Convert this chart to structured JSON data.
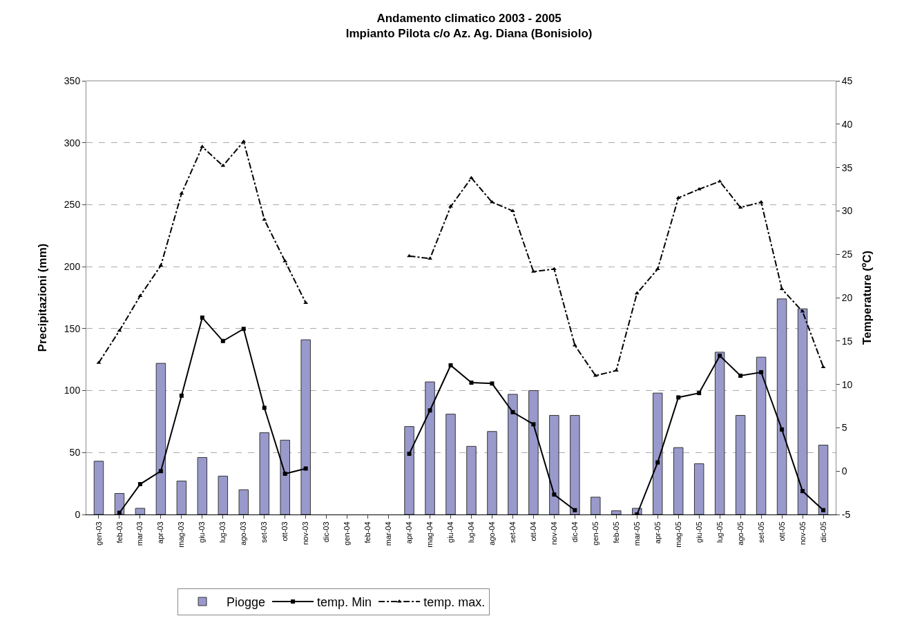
{
  "chart_data": {
    "type": "bar",
    "title": "Andamento climatico 2003 - 2005\nImpianto Pilota c/o Az. Ag. Diana (Bonisiolo)",
    "ylabel": "Precipitazioni (mm)",
    "y2label": "Temperature (ºC)",
    "categories": [
      "gen-03",
      "feb-03",
      "mar-03",
      "apr-03",
      "mag-03",
      "giu-03",
      "lug-03",
      "ago-03",
      "set-03",
      "ott-03",
      "nov-03",
      "dic-03",
      "gen-04",
      "feb-04",
      "mar-04",
      "apr-04",
      "mag-04",
      "giu-04",
      "lug-04",
      "ago-04",
      "set-04",
      "ott-04",
      "nov-04",
      "dic-04",
      "gen-05",
      "feb-05",
      "mar-05",
      "apr-05",
      "mag-05",
      "giu-05",
      "lug-05",
      "ago-05",
      "set-05",
      "ott-05",
      "nov-05",
      "dic-05"
    ],
    "series": [
      {
        "name": "Piogge",
        "color": "#9999cc",
        "values": [
          43,
          17,
          5,
          122,
          27,
          46,
          31,
          20,
          66,
          60,
          141,
          null,
          null,
          null,
          null,
          71,
          107,
          81,
          55,
          67,
          97,
          100,
          80,
          80,
          14,
          3,
          5,
          98,
          54,
          41,
          131,
          80,
          127,
          174,
          166,
          56
        ]
      },
      {
        "name": "temp. Min",
        "type": "line",
        "axis": "y2",
        "color": "#000000",
        "marker": "square",
        "line_style": "solid",
        "values": [
          null,
          -4.8,
          -1.5,
          0,
          8.7,
          17.7,
          15,
          16.4,
          7.3,
          -0.3,
          0.3,
          null,
          null,
          null,
          null,
          2,
          7,
          12.2,
          10.2,
          10.1,
          6.8,
          5.4,
          -2.7,
          -4.5,
          null,
          null,
          -5,
          1,
          8.5,
          9,
          13.3,
          11,
          11.4,
          4.8,
          -2.3,
          -4.5
        ]
      },
      {
        "name": "temp. max.",
        "type": "line",
        "axis": "y2",
        "color": "#000000",
        "marker": "triangle",
        "line_style": "dashdot",
        "values": [
          12.5,
          16.2,
          20.2,
          23.7,
          32,
          37.4,
          35.2,
          38,
          29,
          24.2,
          19.4,
          null,
          null,
          null,
          null,
          24.8,
          24.5,
          30.5,
          33.8,
          31,
          30,
          23,
          23.3,
          14.5,
          11,
          11.6,
          20.5,
          23.3,
          31.5,
          32.5,
          33.4,
          30.4,
          31,
          21,
          18.4,
          12
        ]
      }
    ],
    "ylim": [
      0,
      350
    ],
    "yticks": [
      0,
      50,
      100,
      150,
      200,
      250,
      300,
      350
    ],
    "y2lim": [
      -5,
      45
    ],
    "y2ticks": [
      -5,
      0,
      5,
      10,
      15,
      20,
      25,
      30,
      35,
      40,
      45
    ],
    "grid": "y",
    "legend": "bottom"
  }
}
